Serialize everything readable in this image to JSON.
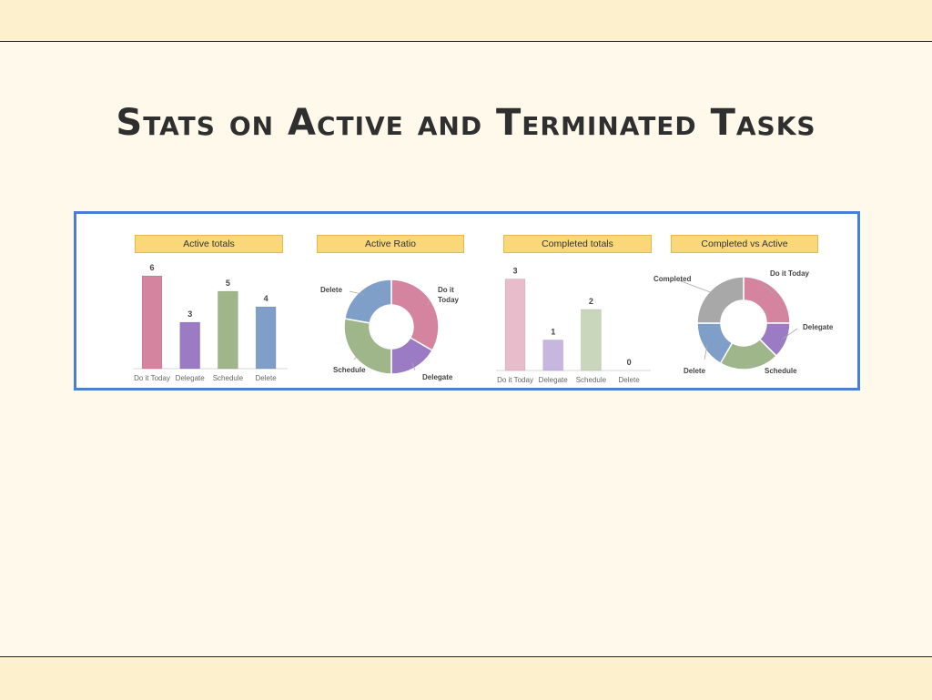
{
  "title": "Stats on Active and Terminated Tasks",
  "colors": {
    "accent_border": "#4a7fd4",
    "header_fill": "#fad87a",
    "band": "#fdf0cd",
    "background": "#fef9ea"
  },
  "chart_data": [
    {
      "type": "bar",
      "title": "Active totals",
      "categories": [
        "Do it Today",
        "Delegate",
        "Schedule",
        "Delete"
      ],
      "values": [
        6,
        3,
        5,
        4
      ],
      "colors": [
        "#d4849e",
        "#9b7cc4",
        "#9fb68a",
        "#7f9fc8"
      ],
      "data_labels": true
    },
    {
      "type": "pie",
      "donut": true,
      "title": "Active Ratio",
      "categories": [
        "Do it Today",
        "Delegate",
        "Schedule",
        "Delete"
      ],
      "values": [
        6,
        3,
        5,
        4
      ],
      "colors": [
        "#d4849e",
        "#9b7cc4",
        "#9fb68a",
        "#7f9fc8"
      ]
    },
    {
      "type": "bar",
      "title": "Completed totals",
      "categories": [
        "Do it Today",
        "Delegate",
        "Schedule",
        "Delete"
      ],
      "values": [
        3,
        1,
        2,
        0
      ],
      "colors": [
        "#e8bccb",
        "#c7b6e0",
        "#c9d6bc",
        "#c9d6e8"
      ],
      "data_labels": true
    },
    {
      "type": "pie",
      "donut": true,
      "title": "Completed vs Active",
      "categories": [
        "Do it Today",
        "Delegate",
        "Schedule",
        "Delete",
        "Completed"
      ],
      "values": [
        6,
        3,
        5,
        4,
        6
      ],
      "colors": [
        "#d4849e",
        "#9b7cc4",
        "#9fb68a",
        "#7f9fc8",
        "#a8a8a8"
      ]
    }
  ]
}
